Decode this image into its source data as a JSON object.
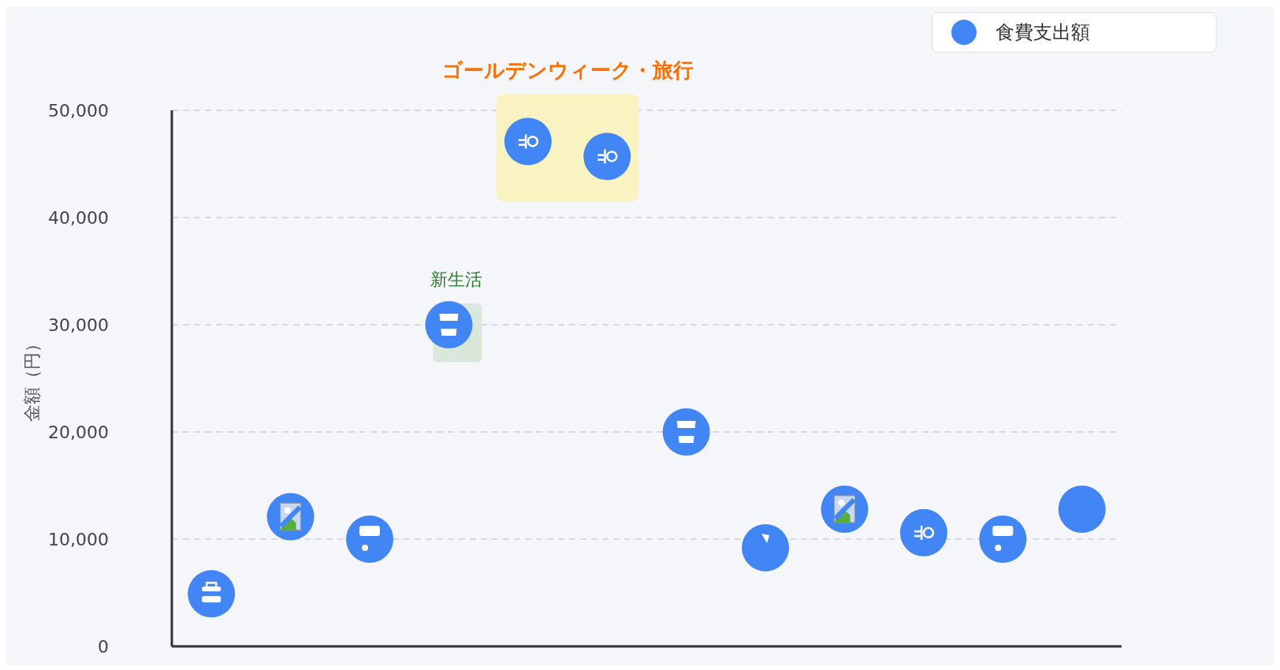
{
  "chart_data": {
    "type": "scatter",
    "ylabel": "金額（円）",
    "categories": [
      null,
      null,
      null,
      null,
      null,
      null,
      null,
      null,
      null,
      null,
      null,
      null
    ],
    "series": [
      {
        "name": "食費支出額",
        "color": "#4285f4",
        "values": [
          4900,
          12100,
          10000,
          30000,
          47100,
          45700,
          20000,
          9200,
          12800,
          10600,
          10000,
          12800
        ]
      }
    ],
    "ylim": [
      0,
      50000
    ],
    "yticks": [
      {
        "value": 0,
        "label": "0"
      },
      {
        "value": 10000,
        "label": "10,000"
      },
      {
        "value": 20000,
        "label": "20,000"
      },
      {
        "value": 30000,
        "label": "30,000"
      },
      {
        "value": 40000,
        "label": "40,000"
      },
      {
        "value": 50000,
        "label": "50,000"
      }
    ],
    "grid": "y",
    "legend": "top right",
    "marker": "circle",
    "annotations": [
      "ゴールデンウィーク・旅行",
      "新生活"
    ]
  }
}
